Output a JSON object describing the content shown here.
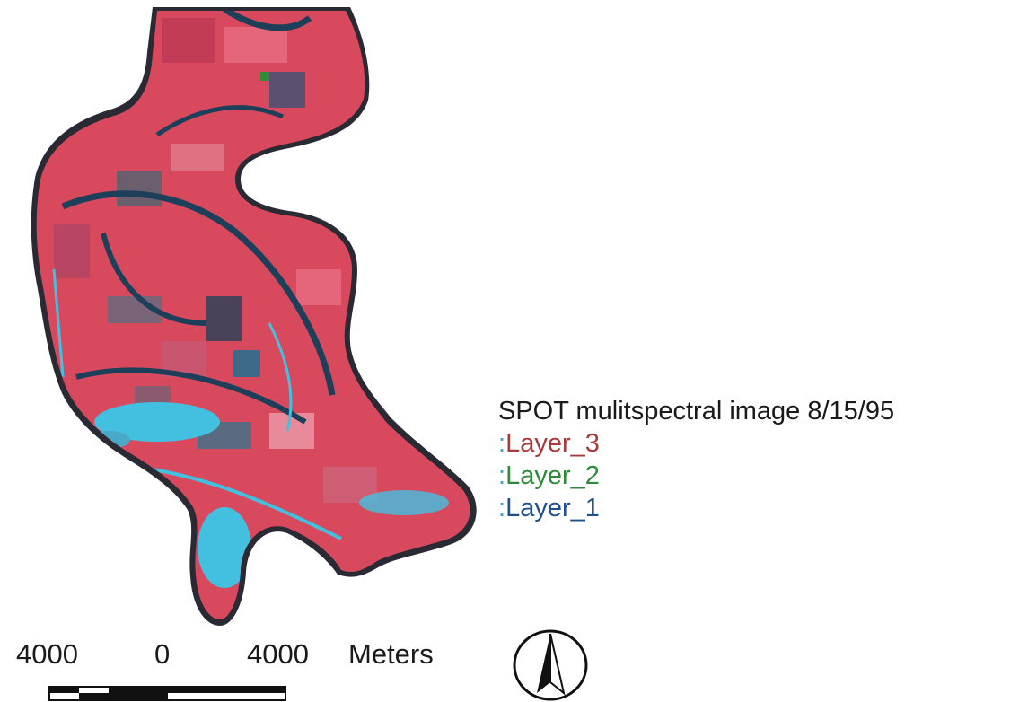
{
  "legend": {
    "title": "SPOT mulitspectral image 8/15/95",
    "layers": [
      {
        "label": "Layer_3",
        "color": "#a83a3a"
      },
      {
        "label": "Layer_2",
        "color": "#2f8a3a"
      },
      {
        "label": "Layer_1",
        "color": "#1f4f8f"
      }
    ],
    "prefix": ":"
  },
  "scale_bar": {
    "labels": [
      "4000",
      "0",
      "4000"
    ],
    "unit": "Meters"
  },
  "north_arrow": {
    "icon": "north-arrow-icon"
  },
  "colors": {
    "vegetation_red": "#d8495e",
    "water_cyan": "#43c0e0",
    "river_dark": "#1d3f5a",
    "soil_gray": "#6b5f6e"
  }
}
